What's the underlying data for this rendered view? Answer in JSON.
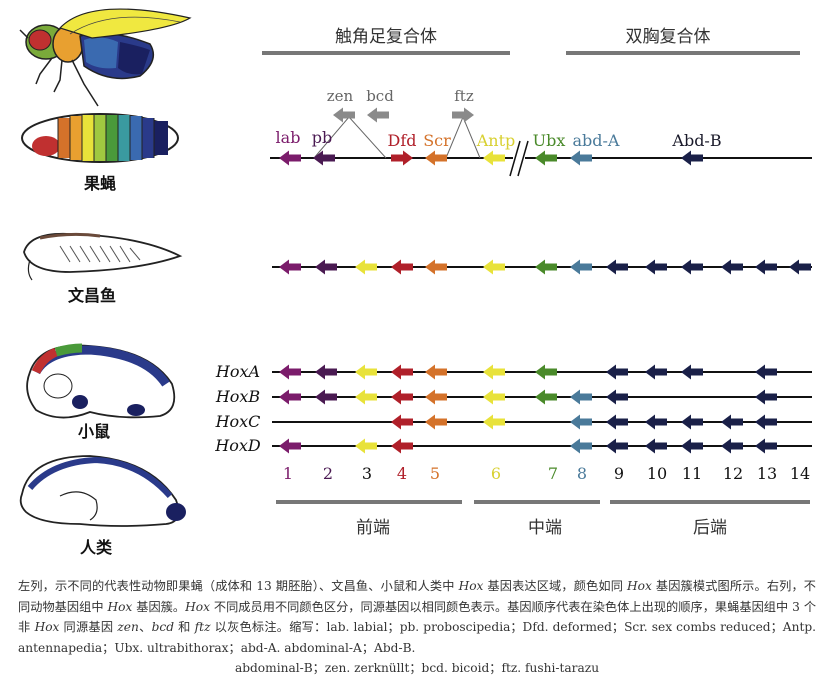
{
  "header": {
    "left_label": "触角足复合体",
    "right_label": "双胸复合体"
  },
  "bottom_groups": [
    {
      "label": "前端"
    },
    {
      "label": "中端"
    },
    {
      "label": "后端"
    }
  ],
  "animals": [
    {
      "label": "果蝇",
      "icon": "fly-and-embryo-icon"
    },
    {
      "label": "文昌鱼",
      "icon": "amphioxus-icon"
    },
    {
      "label": "小鼠",
      "icon": "mouse-embryo-icon"
    },
    {
      "label": "人类",
      "icon": "human-fetus-icon"
    }
  ],
  "colors": {
    "c1": "#7b1c6b",
    "c2": "#4a1a52",
    "c3": "#e8e23a",
    "c4": "#b0202a",
    "c5": "#d4722a",
    "c6": "#e8e23a",
    "c7": "#4a8a2a",
    "c8": "#4a7a9a",
    "c9": "#1a2048",
    "gray": "#8a8a8a",
    "line": "#111111"
  },
  "fly_genes": [
    {
      "label": "lab",
      "colorKey": "c1"
    },
    {
      "label": "pb",
      "colorKey": "c2"
    },
    {
      "label": "Dfd",
      "colorKey": "c4"
    },
    {
      "label": "Scr",
      "colorKey": "c5"
    },
    {
      "label": "Antp",
      "colorKey": "c6"
    },
    {
      "label": "Ubx",
      "colorKey": "c7"
    },
    {
      "label": "abd-A",
      "colorKey": "c8"
    },
    {
      "label": "Abd-B",
      "colorKey": "c9"
    }
  ],
  "fly_nonhox": [
    {
      "label": "zen"
    },
    {
      "label": "bcd"
    },
    {
      "label": "ftz"
    }
  ],
  "mouse_rows": [
    {
      "label": "HoxA",
      "genes": [
        1,
        2,
        3,
        4,
        5,
        6,
        7,
        9,
        10,
        11,
        13
      ]
    },
    {
      "label": "HoxB",
      "genes": [
        1,
        2,
        3,
        4,
        5,
        6,
        7,
        8,
        9,
        13
      ]
    },
    {
      "label": "HoxC",
      "genes": [
        4,
        5,
        6,
        8,
        9,
        10,
        11,
        12,
        13
      ]
    },
    {
      "label": "HoxD",
      "genes": [
        1,
        3,
        4,
        8,
        9,
        10,
        11,
        12,
        13
      ]
    }
  ],
  "paralog_numbers": [
    "1",
    "2",
    "3",
    "4",
    "5",
    "6",
    "7",
    "8",
    "9",
    "10",
    "11",
    "12",
    "13",
    "14"
  ],
  "caption": {
    "p1": "左列，示不同的代表性动物即果蝇（成体和 13 期胚胎）、文昌鱼、小鼠和人类中 ",
    "hox1": "Hox",
    "p2": " 基因表达区域，颜色如同 ",
    "hox2": "Hox",
    "p3": " 基因簇模式图所示。右列，不同动物基因组中 ",
    "hox3": "Hox",
    "p4": " 基因簇。",
    "hox4": "Hox",
    "p5": " 不同成员用不同颜色区分，同源基因以相同颜色表示。基因顺序代表在染色体上出现的顺序，果蝇基因组中 3 个非 ",
    "hox5": "Hox",
    "p6": " 同源基因 ",
    "zen": "zen",
    "p7": "、",
    "bcd": "bcd",
    "p8": " 和 ",
    "ftz": "ftz",
    "p9": " 以灰色标注。缩写：lab. labial；pb. proboscipedia；Dfd. deformed；Scr. sex combs reduced；Antp. antennapedia；Ubx. ultrabithorax；abd-A. abdominal-A；Abd-B.",
    "p10": "abdominal-B；zen. zerknüllt；bcd. bicoid；ftz. fushi-tarazu"
  }
}
